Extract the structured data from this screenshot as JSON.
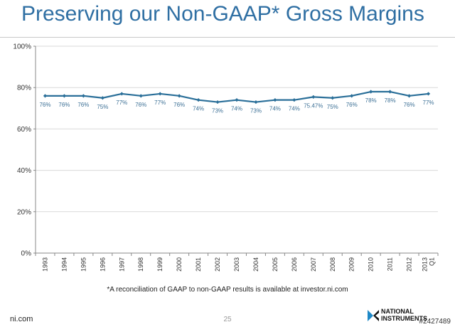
{
  "slide": {
    "title": "Preserving our Non-GAAP* Gross Margins",
    "footnote": "*A reconciliation of GAAP to non-GAAP results is available at investor.ni.com",
    "footer_site": "ni.com",
    "page_number": "25",
    "logo_text_line1": "NATIONAL",
    "logo_text_line2": "INSTRUMENTS",
    "watermark": "#2427489"
  },
  "colors": {
    "title": "#2f6fa3",
    "series": "#2a6f99",
    "grid": "#d9d9d9",
    "axis": "#888888",
    "label_text": "#3b6f95"
  },
  "chart_data": {
    "type": "line",
    "categories": [
      "1993",
      "1994",
      "1995",
      "1996",
      "1997",
      "1998",
      "1999",
      "2000",
      "2001",
      "2002",
      "2003",
      "2004",
      "2005",
      "2006",
      "2007",
      "2008",
      "2009",
      "2010",
      "2011",
      "2012",
      "Q1 2013"
    ],
    "series": [
      {
        "values": [
          76,
          76,
          76,
          75,
          77,
          76,
          77,
          76,
          74,
          73,
          74,
          73,
          74,
          74,
          75.47,
          75,
          76,
          78,
          78,
          76,
          77
        ],
        "labels": [
          "76%",
          "76%",
          "76%",
          "75%",
          "77%",
          "76%",
          "77%",
          "76%",
          "74%",
          "73%",
          "74%",
          "73%",
          "74%",
          "74%",
          "75.47%",
          "75%",
          "76%",
          "78%",
          "78%",
          "76%",
          "77%"
        ]
      }
    ],
    "y_ticks": [
      "0%",
      "20%",
      "40%",
      "60%",
      "80%",
      "100%"
    ],
    "ylim": [
      0,
      100
    ],
    "grid": true,
    "legend": "none",
    "title": "",
    "xlabel": "",
    "ylabel": ""
  }
}
